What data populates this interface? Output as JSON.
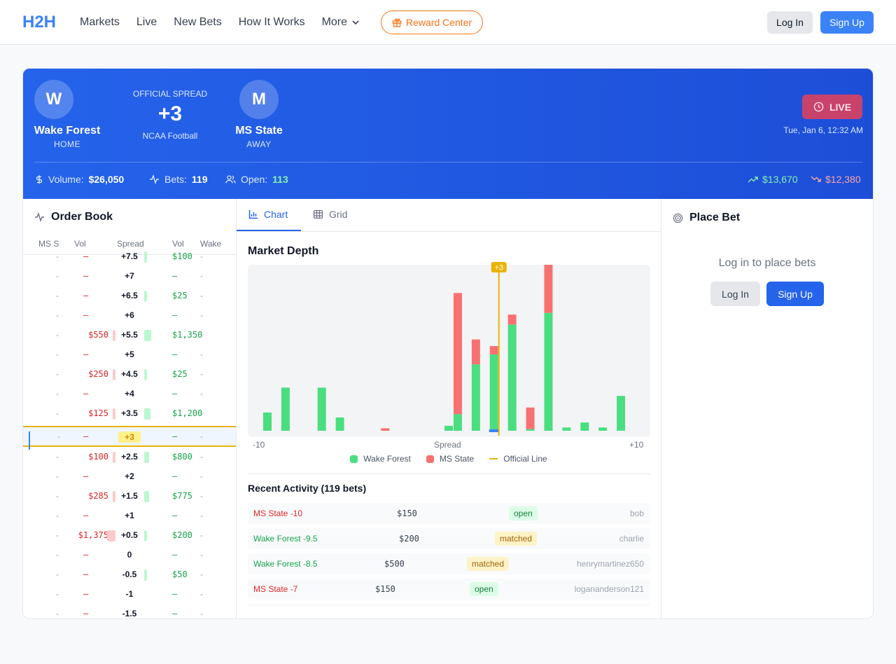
{
  "nav": {
    "logo": "H2H",
    "links": [
      "Markets",
      "Live",
      "New Bets",
      "How It Works",
      "More"
    ],
    "reward": "Reward Center",
    "login": "Log In",
    "signup": "Sign Up"
  },
  "game": {
    "home": {
      "initial": "W",
      "name": "Wake Forest",
      "side": "HOME"
    },
    "away": {
      "initial": "M",
      "name": "MS State",
      "side": "AWAY"
    },
    "spread_label": "OFFICIAL SPREAD",
    "spread": "+3",
    "league": "NCAA Football",
    "status": "LIVE",
    "datetime": "Tue, Jan 6, 12:32 AM",
    "volume_label": "Volume:",
    "volume": "$26,050",
    "bets_label": "Bets:",
    "bets": "119",
    "open_label": "Open:",
    "open": "113",
    "up": "$13,670",
    "down": "$12,380"
  },
  "orderbook": {
    "title": "Order Book",
    "headers": [
      "MS S",
      "Vol",
      "Spread",
      "Vol",
      "Wake"
    ],
    "rows": [
      {
        "left": "–",
        "spread": "+7.5",
        "right": "$100",
        "lbar": 0,
        "rbar": 0.15
      },
      {
        "left": "–",
        "spread": "+7",
        "right": "–",
        "lbar": 0,
        "rbar": 0
      },
      {
        "left": "–",
        "spread": "+6.5",
        "right": "$25",
        "lbar": 0,
        "rbar": 0.1
      },
      {
        "left": "–",
        "spread": "+6",
        "right": "–",
        "lbar": 0,
        "rbar": 0
      },
      {
        "left": "$550",
        "spread": "+5.5",
        "right": "$1,350",
        "lbar": 0.28,
        "rbar": 0.8
      },
      {
        "left": "–",
        "spread": "+5",
        "right": "–",
        "lbar": 0,
        "rbar": 0
      },
      {
        "left": "$250",
        "spread": "+4.5",
        "right": "$25",
        "lbar": 0.2,
        "rbar": 0.1
      },
      {
        "left": "–",
        "spread": "+4",
        "right": "–",
        "lbar": 0,
        "rbar": 0
      },
      {
        "left": "$125",
        "spread": "+3.5",
        "right": "$1,200",
        "lbar": 0.15,
        "rbar": 0.7
      },
      {
        "left": "–",
        "spread": "+3",
        "right": "–",
        "lbar": 0,
        "rbar": 0,
        "current": true
      },
      {
        "left": "$100",
        "spread": "+2.5",
        "right": "$800",
        "lbar": 0.14,
        "rbar": 0.55
      },
      {
        "left": "–",
        "spread": "+2",
        "right": "–",
        "lbar": 0,
        "rbar": 0
      },
      {
        "left": "$285",
        "spread": "+1.5",
        "right": "$775",
        "lbar": 0.2,
        "rbar": 0.55
      },
      {
        "left": "–",
        "spread": "+1",
        "right": "–",
        "lbar": 0,
        "rbar": 0
      },
      {
        "left": "$1,375",
        "spread": "+0.5",
        "right": "$200",
        "lbar": 0.9,
        "rbar": 0.2
      },
      {
        "left": "–",
        "spread": "0",
        "right": "–",
        "lbar": 0,
        "rbar": 0
      },
      {
        "left": "–",
        "spread": "-0.5",
        "right": "$50",
        "lbar": 0,
        "rbar": 0.12
      },
      {
        "left": "–",
        "spread": "-1",
        "right": "–",
        "lbar": 0,
        "rbar": 0
      },
      {
        "left": "–",
        "spread": "-1.5",
        "right": "–",
        "lbar": 0,
        "rbar": 0
      }
    ]
  },
  "tabs": {
    "chart": "Chart",
    "grid": "Grid"
  },
  "depth": {
    "title": "Market Depth",
    "axis_left": "-10",
    "axis_mid": "Spread",
    "axis_right": "+10",
    "official_marker": "+3",
    "legend": {
      "wake": "Wake Forest",
      "ms": "MS State",
      "line": "Official Line"
    }
  },
  "chart_data": {
    "type": "bar",
    "title": "Market Depth",
    "xlabel": "Spread",
    "xlim": [
      -10,
      10
    ],
    "official_line": 3,
    "series": [
      {
        "name": "Wake Forest",
        "color": "#4ade80",
        "points": [
          [
            -10,
            0.11
          ],
          [
            -9,
            0.26
          ],
          [
            -7,
            0.26
          ],
          [
            -6,
            0.08
          ],
          [
            0,
            0.03
          ],
          [
            0.5,
            0.1
          ],
          [
            1.5,
            0.4
          ],
          [
            2.5,
            0.46
          ],
          [
            3.5,
            0.64
          ],
          [
            4.5,
            0.01
          ],
          [
            5.5,
            0.71
          ],
          [
            6.5,
            0.02
          ],
          [
            7.5,
            0.05
          ],
          [
            8.5,
            0.02
          ],
          [
            9.5,
            0.21
          ]
        ]
      },
      {
        "name": "MS State",
        "color": "#f87171",
        "points": [
          [
            -3.5,
            0.015
          ],
          [
            0.5,
            0.73
          ],
          [
            1.5,
            0.15
          ],
          [
            2.5,
            0.05
          ],
          [
            3.5,
            0.06
          ],
          [
            4.5,
            0.13
          ],
          [
            5.5,
            0.29
          ]
        ]
      }
    ]
  },
  "activity": {
    "title": "Recent Activity (119 bets)",
    "rows": [
      {
        "bet": "MS State -10",
        "team": "ms",
        "amount": "$150",
        "status": "open",
        "user": "bob"
      },
      {
        "bet": "Wake Forest -9.5",
        "team": "wake",
        "amount": "$200",
        "status": "matched",
        "user": "charlie"
      },
      {
        "bet": "Wake Forest -8.5",
        "team": "wake",
        "amount": "$500",
        "status": "matched",
        "user": "henrymartinez650"
      },
      {
        "bet": "MS State -7",
        "team": "ms",
        "amount": "$150",
        "status": "open",
        "user": "logananderson121"
      }
    ]
  },
  "placebet": {
    "title": "Place Bet",
    "message": "Log in to place bets",
    "login": "Log In",
    "signup": "Sign Up"
  }
}
